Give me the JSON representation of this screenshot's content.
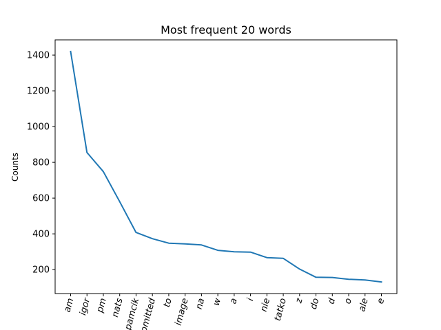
{
  "chart_data": {
    "type": "line",
    "title": "Most frequent 20 words",
    "xlabel": "",
    "ylabel": "Counts",
    "categories": [
      "am",
      "igor",
      "pm",
      "nats",
      "pamcik",
      "omitted",
      "to",
      "image",
      "na",
      "w",
      "a",
      "i",
      "nie",
      "tatko",
      "z",
      "do",
      "d",
      "o",
      "ale",
      "e"
    ],
    "values": [
      1420,
      855,
      748,
      580,
      408,
      373,
      348,
      344,
      338,
      308,
      300,
      298,
      267,
      263,
      203,
      157,
      156,
      146,
      142,
      131
    ],
    "y_ticks": [
      200,
      400,
      600,
      800,
      1000,
      1200,
      1400
    ],
    "ylim": [
      66,
      1485
    ],
    "grid": false,
    "line_color": "#1f77b4"
  }
}
